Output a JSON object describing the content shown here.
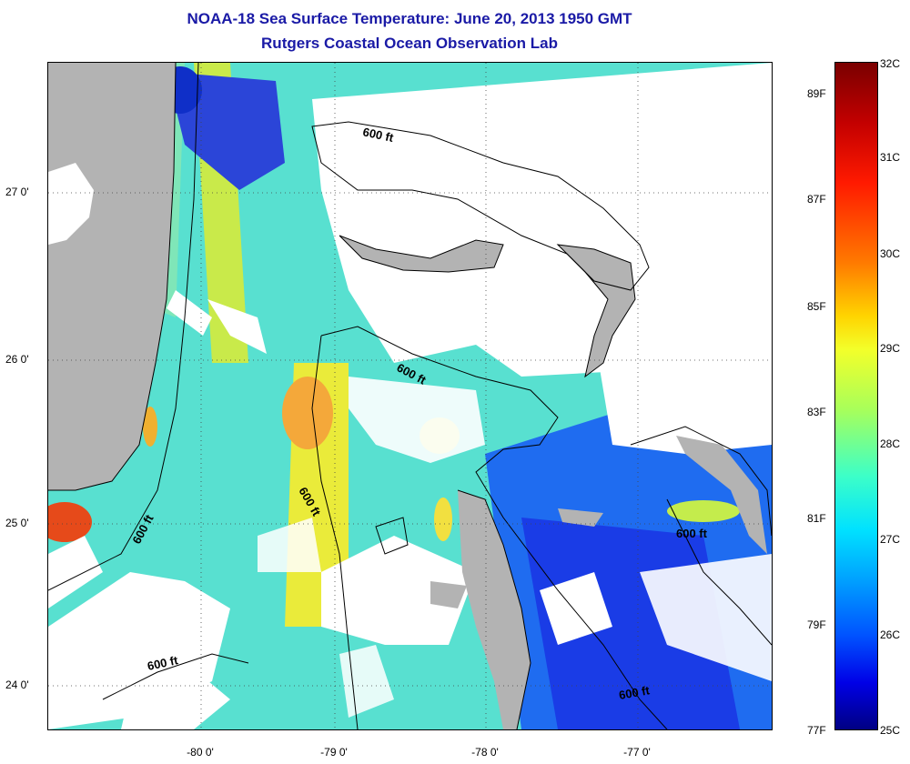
{
  "title": {
    "line1": "NOAA-18 Sea Surface Temperature:  June 20, 2013 1950 GMT",
    "line2": "Rutgers Coastal Ocean Observation Lab"
  },
  "axes": {
    "lat_labels": [
      "27 0'",
      "26 0'",
      "25 0'",
      "24 0'"
    ],
    "lon_labels": [
      "-80 0'",
      "-79 0'",
      "-78 0'",
      "-77 0'"
    ]
  },
  "contours": {
    "depth_label": "600 ft"
  },
  "colorbar": {
    "fahrenheit": [
      "89F",
      "87F",
      "85F",
      "83F",
      "81F",
      "79F",
      "77F"
    ],
    "celsius": [
      "32C",
      "31C",
      "30C",
      "29C",
      "28C",
      "27C",
      "26C",
      "25C"
    ]
  },
  "colors": {
    "title": "#1a1aa6",
    "land": "#b3b3b3",
    "cloud": "#ffffff"
  }
}
